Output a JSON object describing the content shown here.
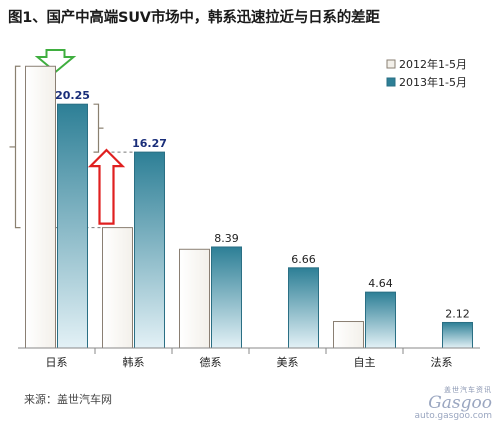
{
  "title": "图1、国产中高端SUV市场中，韩系迅速拉近与日系的差距",
  "source_note": "来源：盖世汽车网",
  "watermark": {
    "cn": "盖世汽车资讯",
    "logo": "Gasgoo",
    "url": "auto.gasgoo.com"
  },
  "colors": {
    "series2012_fill": "#f3f0ea",
    "series2012_stroke": "#8a7f73",
    "series2013_top": "#2d7f96",
    "series2013_bottom": "#e3f1f6",
    "bracket": "#8a8070",
    "dashed": "#777777",
    "down_arrow": "#3fae3f",
    "up_arrow": "#e02020",
    "value_highlight": "#1a2e7a"
  },
  "chart_data": {
    "type": "bar",
    "title": "图1、国产中高端SUV市场中，韩系迅速拉近与日系的差距",
    "categories": [
      "日系",
      "韩系",
      "德系",
      "美系",
      "自主",
      "法系"
    ],
    "series": [
      {
        "name": "2012年1-5月",
        "values": [
          23.4,
          10.0,
          8.2,
          null,
          2.2,
          null
        ]
      },
      {
        "name": "2013年1-5月",
        "values": [
          20.25,
          16.27,
          8.39,
          6.66,
          4.64,
          2.12
        ]
      }
    ],
    "data_labels": [
      "20.25",
      "16.27",
      "8.39",
      "6.66",
      "4.64",
      "2.12"
    ],
    "ylim": [
      0,
      25
    ],
    "legend_position": "top-right",
    "grid": false
  }
}
